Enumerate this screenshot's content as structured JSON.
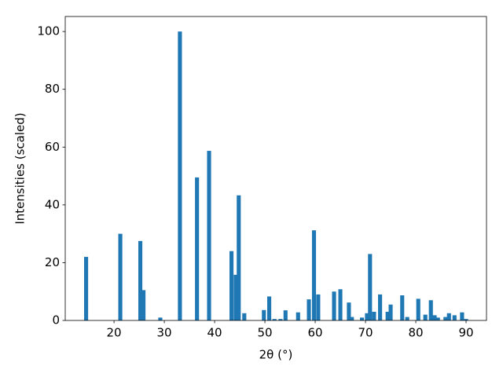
{
  "chart_data": {
    "type": "bar",
    "xlabel": "2θ (°)",
    "ylabel": "Intensities (scaled)",
    "x": [
      14.45,
      21.25,
      25.23,
      25.86,
      29.2,
      33.1,
      36.5,
      38.9,
      43.36,
      44.2,
      44.8,
      45.9,
      49.8,
      50.86,
      51.9,
      53.1,
      54.1,
      56.6,
      58.75,
      59.76,
      60.6,
      63.75,
      65.0,
      66.7,
      67.3,
      69.3,
      70.3,
      70.9,
      71.7,
      72.9,
      74.4,
      75.0,
      77.3,
      78.3,
      80.5,
      81.9,
      83.0,
      83.75,
      84.4,
      85.9,
      86.6,
      87.7,
      89.2,
      90.0
    ],
    "values": [
      22,
      30,
      27.5,
      10.5,
      1,
      100,
      49.5,
      58.7,
      24,
      15.8,
      43.3,
      2.5,
      3.6,
      8.3,
      0.5,
      0.5,
      3.5,
      2.8,
      7.3,
      31.2,
      9,
      10,
      10.8,
      6.2,
      1.2,
      1,
      2.5,
      23,
      3,
      9,
      3,
      5.5,
      8.7,
      1.2,
      7.5,
      2,
      7,
      1.8,
      1,
      1.2,
      2.5,
      1.8,
      2.8,
      0.5
    ],
    "color": "#1f77b4",
    "xlim": [
      10.3,
      94.06
    ],
    "xticks": [
      20,
      30,
      40,
      50,
      60,
      70,
      80,
      90
    ],
    "ylim": [
      0,
      105.2
    ],
    "yticks": [
      0,
      20,
      40,
      60,
      80,
      100
    ]
  }
}
